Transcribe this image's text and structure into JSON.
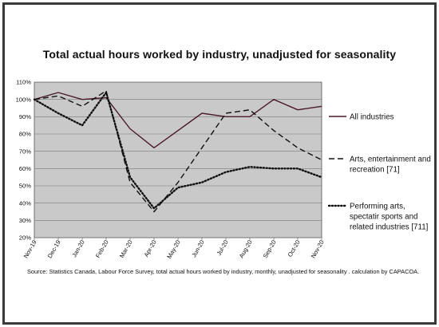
{
  "chart_data": {
    "type": "line",
    "title": "Total actual hours worked by industry, unadjusted for seasonality",
    "source": "Source: Statistics Canada, Labour Force Survey, total actual hours worked by industry, monthly, unadjusted for seasonality . calculation by CAPACOA.",
    "categories": [
      "Nov-19",
      "Dec-19",
      "Jan-20",
      "Feb-20",
      "Mar-20",
      "Apr-20",
      "May-20",
      "Jun-20",
      "Jul-20",
      "Aug-20",
      "Sep-20",
      "Oct-20",
      "Nov-20"
    ],
    "yticks": [
      "20%",
      "30%",
      "40%",
      "50%",
      "60%",
      "70%",
      "80%",
      "90%",
      "100%",
      "110%"
    ],
    "ylim": [
      20,
      110
    ],
    "grid": true,
    "legend_position": "right",
    "series": [
      {
        "name": "All industries",
        "label_lines": [
          "All industries"
        ],
        "style": "solid",
        "color": "#4a1a2e",
        "values": [
          100,
          104,
          100,
          101,
          83,
          72,
          82,
          92,
          90,
          90,
          100,
          94,
          96
        ]
      },
      {
        "name": "Arts, entertainment and recreation [71]",
        "label_lines": [
          "Arts, entertainment and",
          "recreation [71]"
        ],
        "style": "dashed",
        "color": "#111111",
        "values": [
          100,
          102,
          96,
          105,
          52,
          35,
          52,
          72,
          92,
          94,
          82,
          72,
          65
        ]
      },
      {
        "name": "Performing arts, spectatir sports and related industries [711]",
        "label_lines": [
          "Performing arts,",
          "spectatir sports and",
          "related industries [711]"
        ],
        "style": "dotted",
        "color": "#111111",
        "values": [
          100,
          92,
          85,
          104,
          55,
          37,
          49,
          52,
          58,
          61,
          60,
          60,
          55
        ]
      }
    ]
  }
}
